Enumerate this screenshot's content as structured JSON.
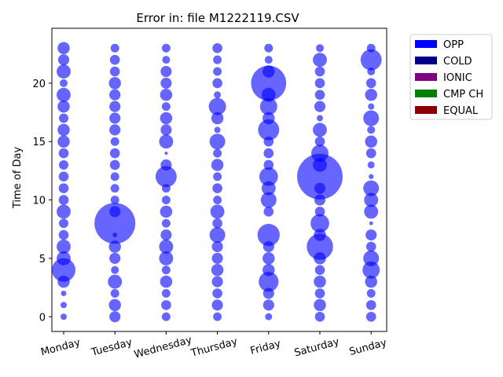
{
  "chart_data": {
    "type": "bubble",
    "title": "Error in: file M1222119.CSV",
    "y_label": "Time of Day",
    "categories": [
      "Monday",
      "Tuesday",
      "Wednesday",
      "Thursday",
      "Friday",
      "Saturday",
      "Sunday"
    ],
    "hours": [
      0,
      1,
      2,
      3,
      4,
      5,
      6,
      7,
      8,
      9,
      10,
      11,
      12,
      13,
      14,
      15,
      16,
      17,
      18,
      19,
      20,
      21,
      22,
      23
    ],
    "ylim": [
      -1.26,
      24.7
    ],
    "yticks": [
      0,
      5,
      10,
      15,
      20
    ],
    "legend": "outside right",
    "series": [
      {
        "name": "OPP",
        "color": "#0000ff",
        "sizes": [
          [
            16,
            16,
            12,
            60,
            225,
            80,
            80,
            40,
            36,
            80,
            40,
            40,
            40,
            36,
            40,
            60,
            60,
            36,
            60,
            80,
            25,
            80,
            50,
            60
          ],
          [
            50,
            60,
            30,
            80,
            25,
            50,
            60,
            9,
            676,
            50,
            30,
            30,
            30,
            40,
            40,
            30,
            50,
            50,
            50,
            50,
            60,
            40,
            40,
            30
          ],
          [
            30,
            40,
            30,
            60,
            30,
            80,
            80,
            50,
            30,
            60,
            30,
            30,
            180,
            50,
            4,
            80,
            50,
            60,
            30,
            60,
            50,
            50,
            25,
            30
          ],
          [
            30,
            50,
            40,
            50,
            60,
            50,
            50,
            100,
            40,
            80,
            30,
            40,
            30,
            60,
            30,
            100,
            16,
            60,
            120,
            20,
            40,
            30,
            30,
            40
          ],
          [
            20,
            50,
            50,
            160,
            60,
            60,
            50,
            200,
            null,
            40,
            100,
            80,
            140,
            40,
            40,
            40,
            180,
            60,
            120,
            80,
            500,
            60,
            25,
            30
          ],
          [
            40,
            60,
            40,
            60,
            40,
            60,
            280,
            60,
            140,
            40,
            50,
            50,
            840,
            80,
            120,
            40,
            80,
            16,
            50,
            40,
            40,
            40,
            80,
            25
          ],
          [
            40,
            40,
            30,
            60,
            120,
            100,
            40,
            50,
            6,
            80,
            80,
            100,
            10,
            20,
            40,
            60,
            25,
            100,
            16,
            60,
            40,
            25,
            180,
            30
          ]
        ]
      },
      {
        "name": "COLD",
        "color": "#00008b"
      },
      {
        "name": "IONIC",
        "color": "#800080"
      },
      {
        "name": "CMP CH",
        "color": "#008000"
      },
      {
        "name": "EQUAL",
        "color": "#8b0000"
      }
    ]
  }
}
